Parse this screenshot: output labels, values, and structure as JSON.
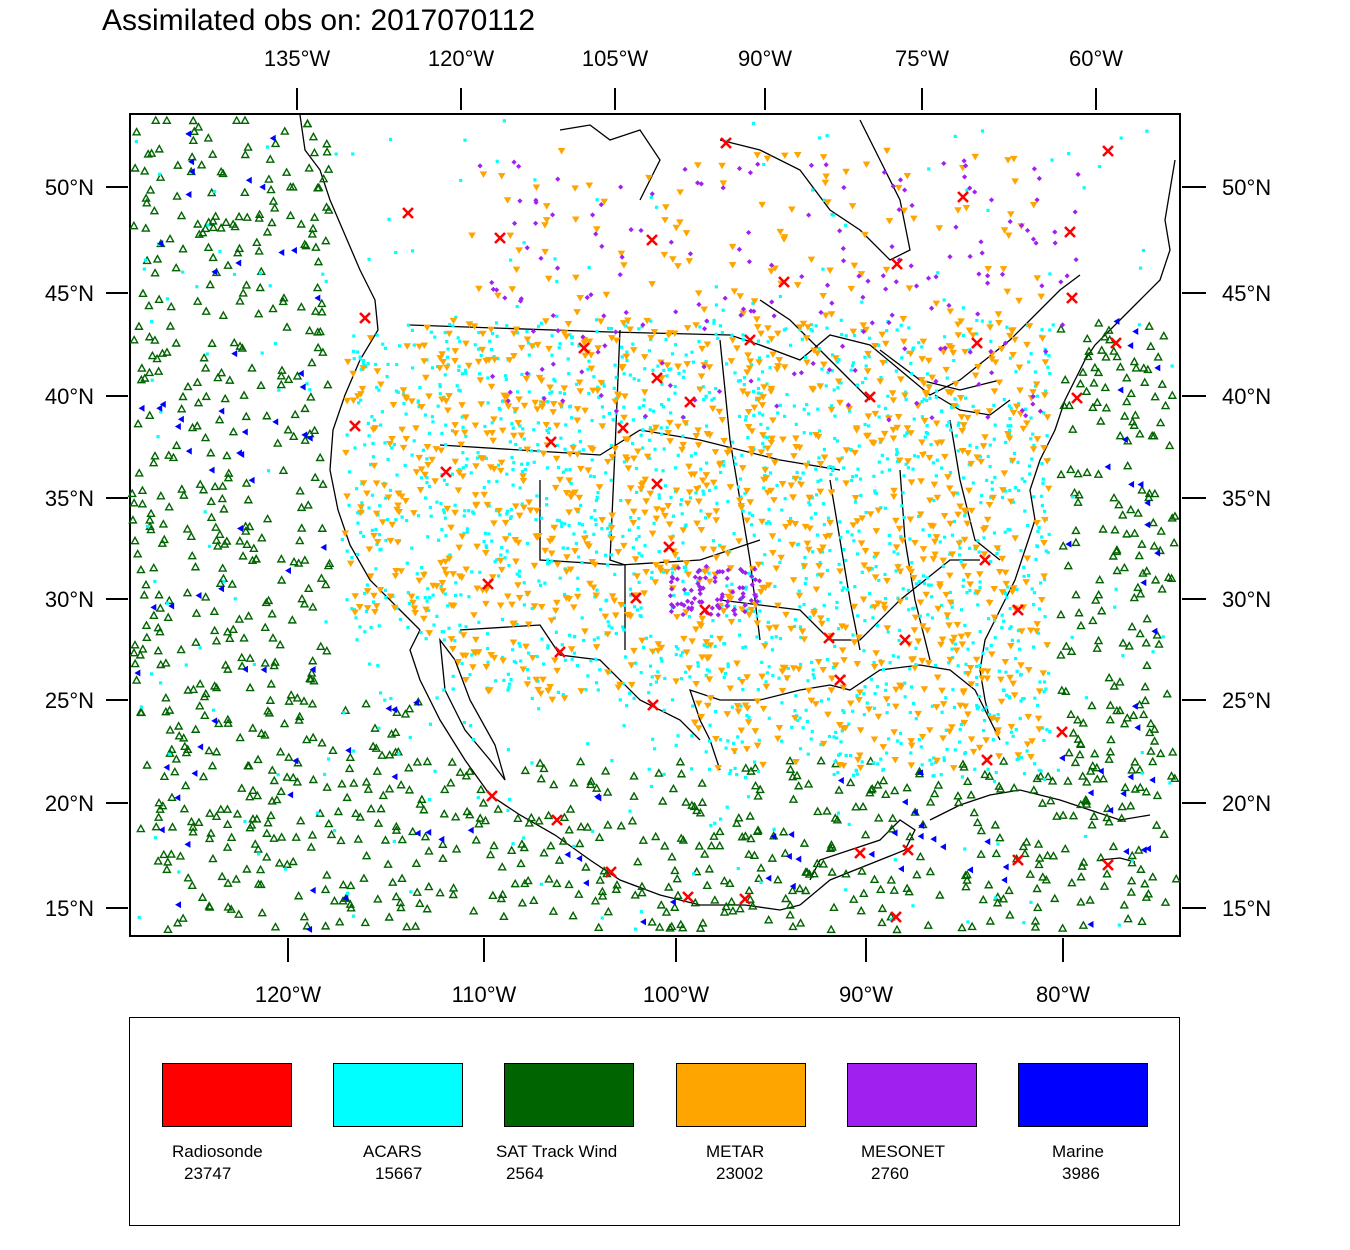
{
  "title": "Assimilated obs on: 2017070112",
  "map": {
    "projection": "lambert-conformal",
    "top_lon_labels": [
      "135°W",
      "120°W",
      "105°W",
      "90°W",
      "75°W",
      "60°W"
    ],
    "bottom_lon_labels": [
      "120°W",
      "110°W",
      "100°W",
      "90°W",
      "80°W"
    ],
    "lat_labels": [
      "50°N",
      "45°N",
      "40°N",
      "35°N",
      "30°N",
      "25°N",
      "20°N",
      "15°N"
    ]
  },
  "legend": [
    {
      "name": "Radiosonde",
      "count": "23747",
      "color": "#ff0000",
      "marker": "x"
    },
    {
      "name": "ACARS",
      "count": "15667",
      "color": "#00ffff",
      "marker": "square"
    },
    {
      "name": "SAT Track Wind",
      "count": "2564",
      "color": "#006400",
      "marker": "triangle-up"
    },
    {
      "name": "METAR",
      "count": "23002",
      "color": "#ffa500",
      "marker": "triangle-down"
    },
    {
      "name": "MESONET",
      "count": "2760",
      "color": "#a020f0",
      "marker": "diamond"
    },
    {
      "name": "Marine",
      "count": "3986",
      "color": "#0000ff",
      "marker": "triangle-left"
    }
  ]
}
